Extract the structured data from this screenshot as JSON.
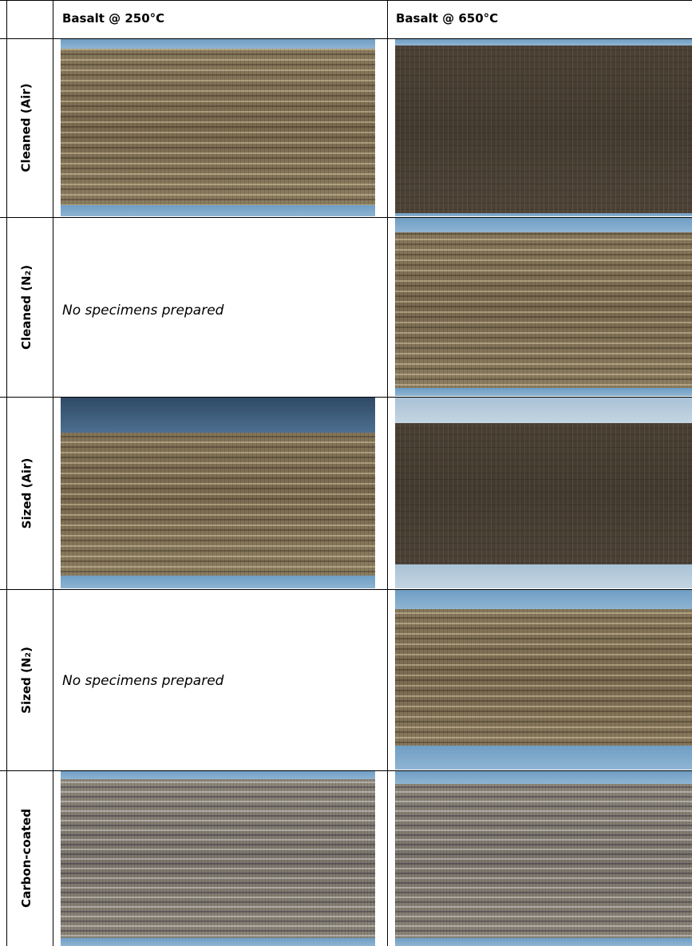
{
  "table": {
    "columns": [
      "Basalt @ 250°C",
      "Basalt @ 650°C"
    ],
    "rows": [
      {
        "label": "Cleaned (Air)"
      },
      {
        "label": "Cleaned (N₂)",
        "note": "No specimens prepared"
      },
      {
        "label": "Sized (Air)"
      },
      {
        "label": "Sized (N₂)",
        "note": "No specimens prepared"
      },
      {
        "label": "Carbon-coated"
      }
    ]
  }
}
